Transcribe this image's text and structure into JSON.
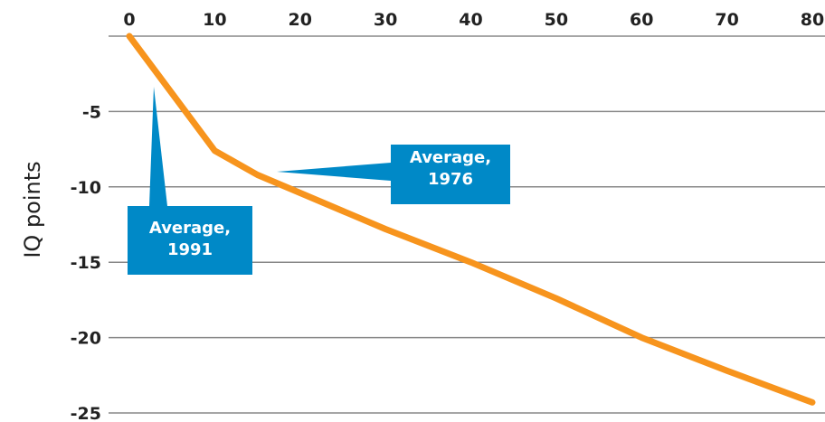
{
  "chart_data": {
    "type": "line",
    "title": "",
    "xlabel": "",
    "ylabel": "IQ points",
    "xlim": [
      0,
      80
    ],
    "ylim": [
      -25,
      0
    ],
    "x_ticks": [
      "0",
      "10",
      "20",
      "30",
      "40",
      "50",
      "60",
      "70",
      "80"
    ],
    "y_ticks": [
      "-5",
      "-10",
      "-15",
      "-20",
      "-25"
    ],
    "grid": true,
    "series": [
      {
        "name": "",
        "color": "#f7941d",
        "x": [
          0,
          10,
          15,
          20,
          30,
          40,
          50,
          60,
          70,
          80
        ],
        "y": [
          0,
          -7.6,
          -9.2,
          -10.4,
          -12.8,
          -15.0,
          -17.4,
          -20.0,
          -22.2,
          -24.3
        ]
      }
    ],
    "annotations": [
      {
        "label": "Average, 1976",
        "lines": [
          "Average,",
          "1976"
        ],
        "x": 18,
        "y": -9.5
      },
      {
        "label": "Average, 1991",
        "lines": [
          "Average,",
          "1991"
        ],
        "x": 3,
        "y": -3
      }
    ],
    "callout_color": "#0089c7"
  }
}
